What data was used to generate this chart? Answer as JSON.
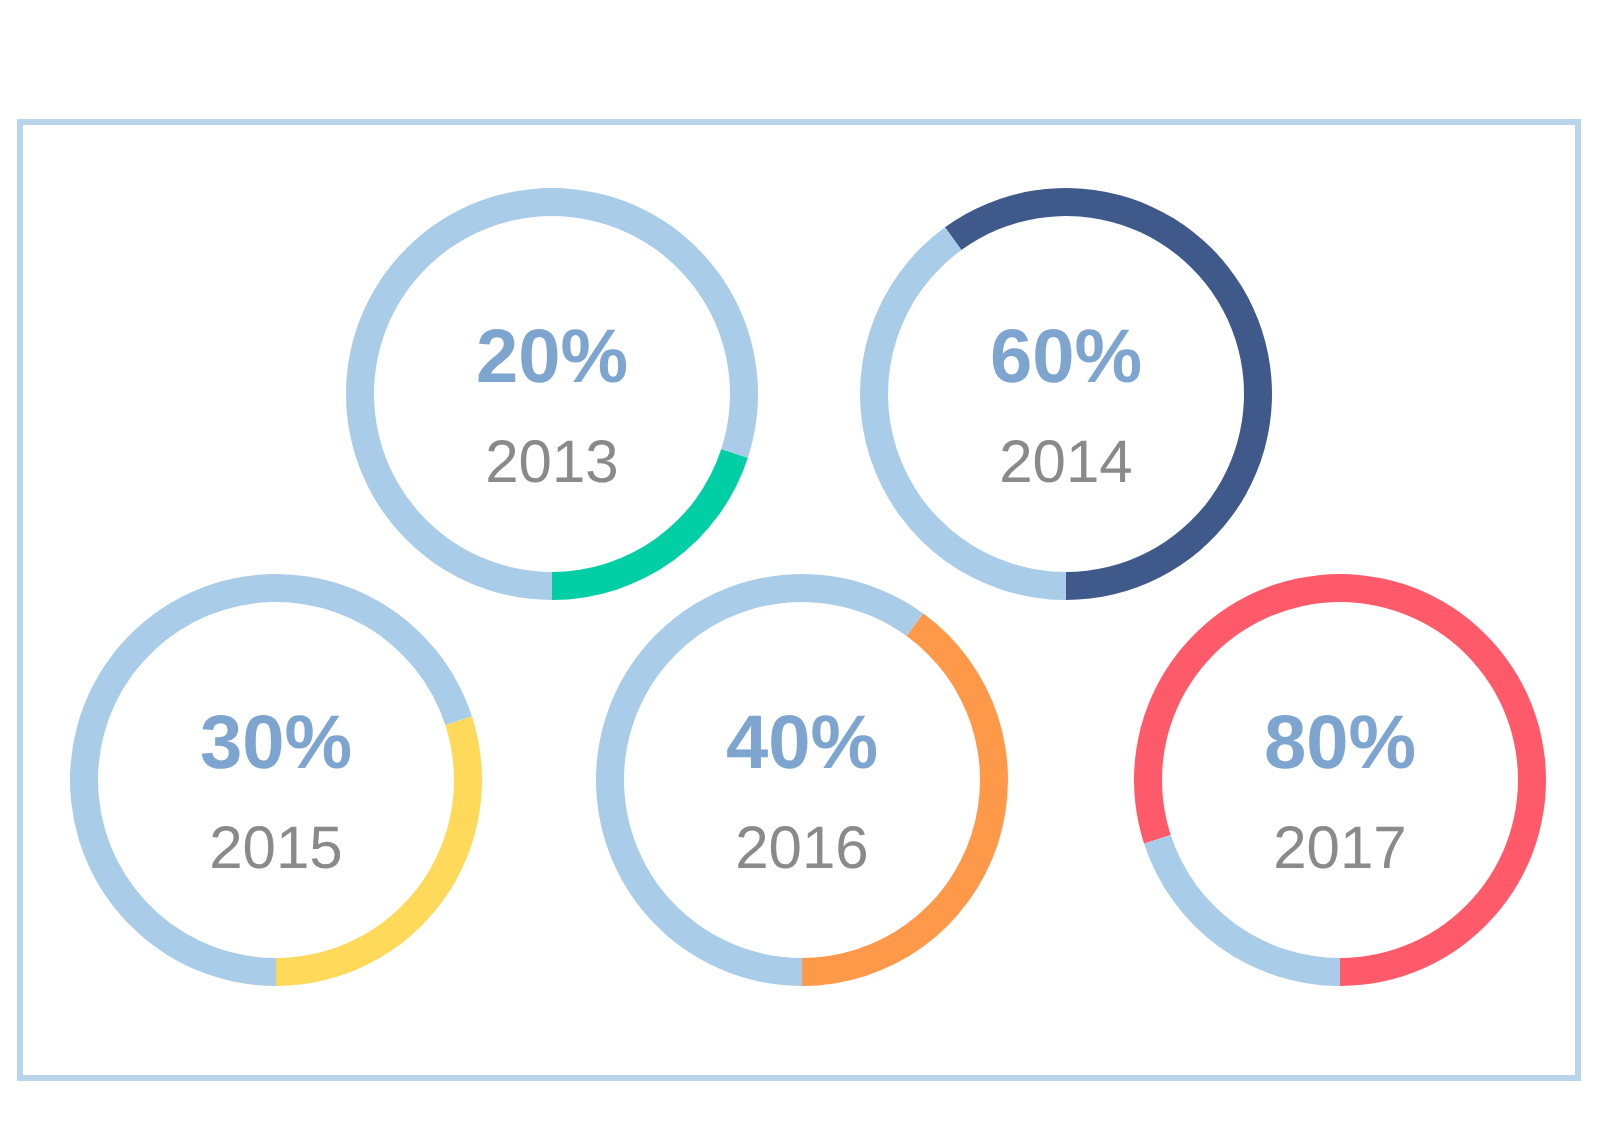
{
  "chart_data": [
    {
      "type": "donut",
      "title": "2013",
      "categories": [
        null,
        null
      ],
      "values": [
        20,
        80
      ],
      "colors": [
        "#00cfa5",
        "#a9cce8"
      ],
      "annotations": [
        "20%"
      ]
    },
    {
      "type": "donut",
      "title": "2014",
      "categories": [
        null,
        null
      ],
      "values": [
        60,
        40
      ],
      "colors": [
        "#3f5a8a",
        "#a9cce8"
      ],
      "annotations": [
        "60%"
      ]
    },
    {
      "type": "donut",
      "title": "2015",
      "categories": [
        null,
        null
      ],
      "values": [
        30,
        70
      ],
      "colors": [
        "#ffd95a",
        "#a9cce8"
      ],
      "annotations": [
        "30%"
      ]
    },
    {
      "type": "donut",
      "title": "2016",
      "categories": [
        null,
        null
      ],
      "values": [
        40,
        60
      ],
      "colors": [
        "#ff994a",
        "#a9cce8"
      ],
      "annotations": [
        "40%"
      ]
    },
    {
      "type": "donut",
      "title": "2017",
      "categories": [
        null,
        null
      ],
      "values": [
        80,
        20
      ],
      "colors": [
        "#ff5a6a",
        "#a9cce8"
      ],
      "annotations": [
        "80%"
      ]
    }
  ]
}
